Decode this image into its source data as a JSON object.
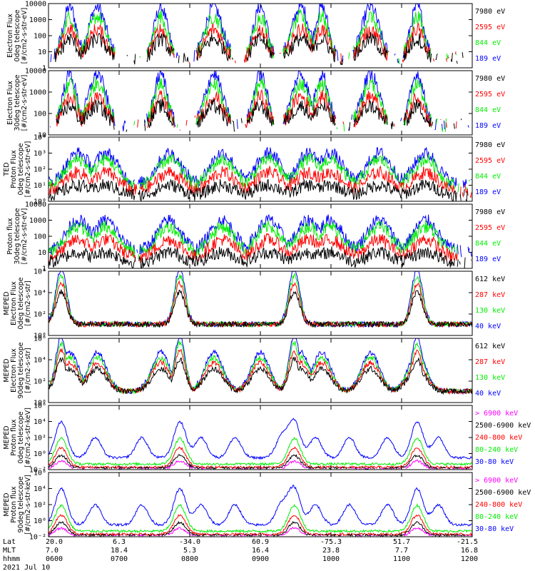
{
  "colors": {
    "black": "#000000",
    "red": "#ff0000",
    "green": "#00ee00",
    "blue": "#0000ff",
    "magenta": "#ff00ff"
  },
  "chart_data": [
    {
      "type": "line",
      "ylabel_lines": [
        "Electron Flux",
        "0deg telescope",
        "[#/cm2-s-str-eV]"
      ],
      "yscale": "log",
      "yticks": [
        "1",
        "10",
        "100",
        "1000",
        "10000"
      ],
      "ylim": [
        1,
        10000
      ],
      "legend": [
        {
          "label": "7980 eV",
          "color": "#000000"
        },
        {
          "label": "2595 eV",
          "color": "#ff0000"
        },
        {
          "label": "844 eV",
          "color": "#00ee00"
        },
        {
          "label": "189 eV",
          "color": "#0000ff"
        }
      ]
    },
    {
      "type": "line",
      "ylabel_lines": [
        "Electron Flux",
        "30deg telescope",
        "[#/cm2-s-str-eV]"
      ],
      "yscale": "log",
      "yticks": [
        "10",
        "100",
        "1000",
        "10000"
      ],
      "ylim": [
        1,
        10000
      ],
      "legend": [
        {
          "label": "7980 eV",
          "color": "#000000"
        },
        {
          "label": "2595 eV",
          "color": "#ff0000"
        },
        {
          "label": "844 eV",
          "color": "#00ee00"
        },
        {
          "label": "189 eV",
          "color": "#0000ff"
        }
      ]
    },
    {
      "type": "line",
      "ylabel_lines": [
        "TED",
        "Proton Flux",
        "0deg telescope",
        "[#/cm2-s-str-eV]"
      ],
      "yscale": "log",
      "yticks": [
        "10⁰",
        "10¹",
        "10²",
        "10³",
        "10⁴"
      ],
      "ylim": [
        1,
        10000
      ],
      "legend": [
        {
          "label": "7980 eV",
          "color": "#000000"
        },
        {
          "label": "2595 eV",
          "color": "#ff0000"
        },
        {
          "label": "844 eV",
          "color": "#00ee00"
        },
        {
          "label": "189 eV",
          "color": "#0000ff"
        }
      ]
    },
    {
      "type": "line",
      "ylabel_lines": [
        "Proton flux",
        "30deg telescope",
        "[#/cm2-s-str-eV]"
      ],
      "yscale": "log",
      "yticks": [
        "1",
        "10",
        "100",
        "1000",
        "10000"
      ],
      "ylim": [
        1,
        10000
      ],
      "legend": [
        {
          "label": "7980 eV",
          "color": "#000000"
        },
        {
          "label": "2595 eV",
          "color": "#ff0000"
        },
        {
          "label": "844 eV",
          "color": "#00ee00"
        },
        {
          "label": "189 eV",
          "color": "#0000ff"
        }
      ]
    },
    {
      "type": "line",
      "ylabel_lines": [
        "MEPED",
        "Electron Flux",
        "0deg telescope",
        "[#/cm2-s-str]"
      ],
      "yscale": "log",
      "yticks": [
        "10⁰",
        "10²",
        "10⁴",
        "10⁶"
      ],
      "ylim": [
        1,
        1000000
      ],
      "legend": [
        {
          "label": "612 keV",
          "color": "#000000"
        },
        {
          "label": "287 keV",
          "color": "#ff0000"
        },
        {
          "label": "130 keV",
          "color": "#00ee00"
        },
        {
          "label": "40 keV",
          "color": "#0000ff"
        }
      ]
    },
    {
      "type": "line",
      "ylabel_lines": [
        "MEPED",
        "Electron Flux",
        "90deg telescope",
        "[#/cm2-s-str]"
      ],
      "yscale": "log",
      "yticks": [
        "10⁰",
        "10²",
        "10⁴",
        "10⁶"
      ],
      "ylim": [
        1,
        1000000
      ],
      "legend": [
        {
          "label": "612 keV",
          "color": "#000000"
        },
        {
          "label": "287 keV",
          "color": "#ff0000"
        },
        {
          "label": "130 keV",
          "color": "#00ee00"
        },
        {
          "label": "40 keV",
          "color": "#0000ff"
        }
      ]
    },
    {
      "type": "line",
      "ylabel_lines": [
        "MEPED",
        "Proton flux",
        "0deg telescope",
        "[#/cm2-s-str-keV]"
      ],
      "yscale": "log",
      "yticks": [
        "10⁻²",
        "10⁰",
        "10²",
        "10⁴",
        "10⁶"
      ],
      "ylim": [
        0.01,
        1000000
      ],
      "legend": [
        {
          "label": "> 6900 keV",
          "color": "#ff00ff"
        },
        {
          "label": "2500-6900 keV",
          "color": "#000000"
        },
        {
          "label": "240-800 keV",
          "color": "#ff0000"
        },
        {
          "label": "80-240 keV",
          "color": "#00ee00"
        },
        {
          "label": "30-80 keV",
          "color": "#0000ff"
        }
      ]
    },
    {
      "type": "line",
      "ylabel_lines": [
        "MEPED",
        "Proton flux",
        "90deg telescope",
        "[#/cm2-s-str-keV]"
      ],
      "yscale": "log",
      "yticks": [
        "10⁻²",
        "10⁰",
        "10²",
        "10⁴",
        "10⁶"
      ],
      "ylim": [
        0.01,
        1000000
      ],
      "legend": [
        {
          "label": "> 6900 keV",
          "color": "#ff00ff"
        },
        {
          "label": "2500-6900 keV",
          "color": "#000000"
        },
        {
          "label": "240-800 keV",
          "color": "#ff0000"
        },
        {
          "label": "80-240 keV",
          "color": "#00ee00"
        },
        {
          "label": "30-80 keV",
          "color": "#0000ff"
        }
      ]
    }
  ],
  "x_axis": {
    "row_labels": [
      "Lat",
      "MLT",
      "hhmm"
    ],
    "date": "2021 Jul 10",
    "ticks": [
      {
        "lat": "20.0",
        "mlt": "7.0",
        "hhmm": "0600"
      },
      {
        "lat": "6.3",
        "mlt": "18.4",
        "hhmm": "0700"
      },
      {
        "lat": "-34.0",
        "mlt": "5.3",
        "hhmm": "0800"
      },
      {
        "lat": "60.9",
        "mlt": "16.4",
        "hhmm": "0900"
      },
      {
        "lat": "-75.3",
        "mlt": "23.8",
        "hhmm": "1000"
      },
      {
        "lat": "51.7",
        "mlt": "7.7",
        "hhmm": "1100"
      },
      {
        "lat": "-21.5",
        "mlt": "16.8",
        "hhmm": "1200"
      }
    ]
  }
}
